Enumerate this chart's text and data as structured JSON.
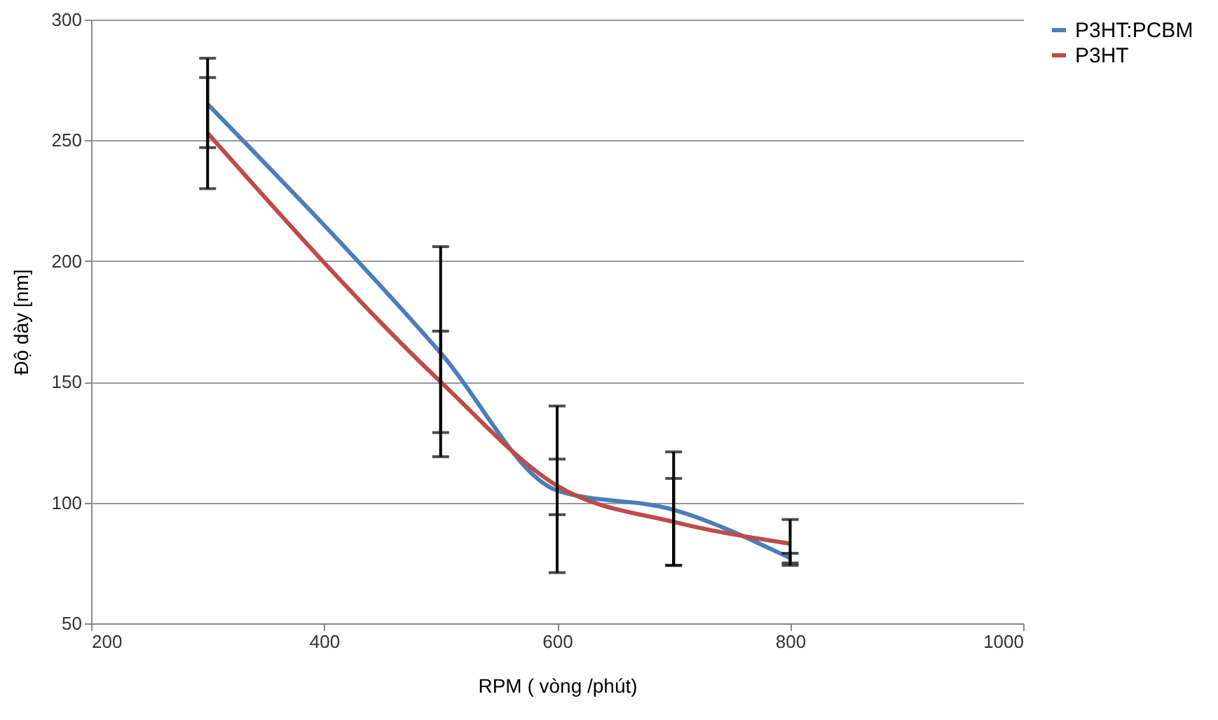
{
  "chart_data": {
    "type": "line",
    "xlabel": "RPM ( vòng /phút)",
    "ylabel": "Độ dày  [nm]",
    "x": [
      300,
      500,
      600,
      700,
      800
    ],
    "series": [
      {
        "name": "P3HT:PCBM",
        "color": "#4a7ebb",
        "values": [
          265,
          162,
          105,
          97,
          77
        ],
        "errors": [
          [
            247,
            284
          ],
          [
            119,
            206
          ],
          [
            71,
            140
          ],
          [
            74,
            121
          ],
          [
            75,
            79
          ]
        ]
      },
      {
        "name": "P3HT",
        "color": "#be4b48",
        "values": [
          253,
          150,
          107,
          92,
          83
        ],
        "errors": [
          [
            230,
            276
          ],
          [
            129,
            171
          ],
          [
            95,
            118
          ],
          [
            74,
            110
          ],
          [
            74,
            93
          ]
        ]
      }
    ],
    "xlim": [
      200,
      1000
    ],
    "xticks": [
      200,
      400,
      600,
      800,
      1000
    ],
    "ylim": [
      50,
      300
    ],
    "yticks": [
      50,
      100,
      150,
      200,
      250,
      300
    ],
    "grid": "y",
    "legend": "right",
    "marker": "none",
    "line_style": "solid"
  }
}
